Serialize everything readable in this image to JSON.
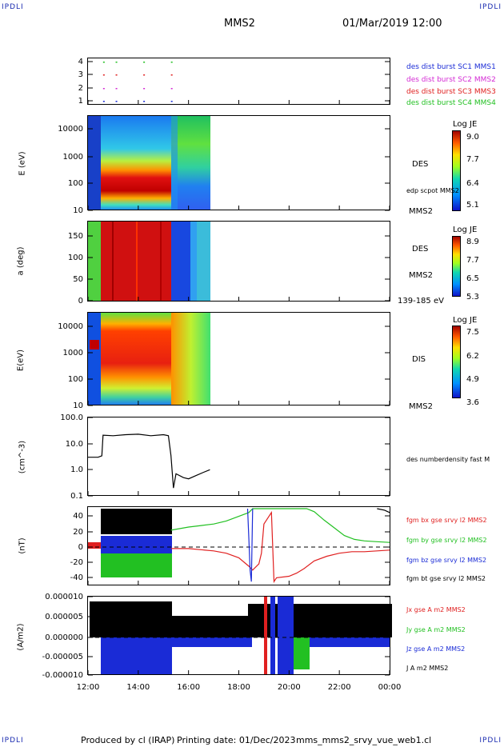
{
  "header": {
    "corner_tl": "IPDLI",
    "corner_tr": "IPDLI",
    "corner_bl": "IPDLI",
    "corner_br": "IPDLI",
    "spacecraft": "MMS2",
    "datetime": "01/Mar/2019 12:00"
  },
  "footer": {
    "producer": "Produced by cl (IRAP)",
    "print_date": "Printing date: 01/Dec/2023",
    "script": "mms_mms2_srvy_vue_web1.cl"
  },
  "chart_data": [
    {
      "type": "scatter",
      "panel": "burst",
      "yticks": [
        "4",
        "3",
        "2",
        "1"
      ],
      "legend": [
        {
          "name": "des dist burst SC1 MMS1",
          "color": "#1a2bd6"
        },
        {
          "name": "des dist burst SC2 MMS2",
          "color": "#d42ad4"
        },
        {
          "name": "des dist burst SC3 MMS3",
          "color": "#e02020"
        },
        {
          "name": "des dist burst SC4 MMS4",
          "color": "#22c022"
        }
      ],
      "x": [
        12.6,
        13.1,
        14.2,
        15.3
      ],
      "rows": [
        1,
        2,
        3,
        4
      ]
    },
    {
      "type": "heatmap",
      "panel": "des-energy",
      "ylabel": "E (eV)",
      "yticks": [
        "10000",
        "1000",
        "100",
        "10"
      ],
      "colorbar": {
        "title": "Log JE",
        "ticks": [
          "9.0",
          "7.7",
          "6.4",
          "5.1"
        ]
      },
      "labels": [
        "DES",
        "edp scpot MMS2",
        "MMS2"
      ],
      "data_end": 16.85
    },
    {
      "type": "heatmap",
      "panel": "des-pitch",
      "ylabel": "a (deg)",
      "yticks": [
        "150",
        "100",
        "50",
        "0"
      ],
      "colorbar": {
        "title": "Log JE",
        "ticks": [
          "8.9",
          "7.7",
          "6.5",
          "5.3"
        ]
      },
      "labels": [
        "DES",
        "MMS2",
        "139-185 eV"
      ],
      "data_end": 16.85
    },
    {
      "type": "heatmap",
      "panel": "dis-energy",
      "ylabel": "E(eV)",
      "yticks": [
        "10000",
        "1000",
        "100",
        "10"
      ],
      "colorbar": {
        "title": "Log JE",
        "ticks": [
          "7.5",
          "6.2",
          "4.9",
          "3.6"
        ]
      },
      "labels": [
        "DIS",
        "MMS2"
      ],
      "data_end": 16.85
    },
    {
      "type": "line",
      "panel": "density",
      "ylabel": "(cm^-3)",
      "yticks": [
        "100.0",
        "10.0",
        "1.0",
        "0.1"
      ],
      "ylim": [
        0.1,
        100
      ],
      "series": [
        {
          "name": "des numberdensity fast M",
          "color": "#000000",
          "x": [
            12.0,
            12.4,
            12.55,
            12.6,
            13.0,
            13.5,
            14.0,
            14.5,
            15.0,
            15.2,
            15.3,
            15.4,
            15.5,
            15.8,
            16.0,
            16.3,
            16.6,
            16.85
          ],
          "y": [
            3.0,
            3.0,
            3.4,
            21,
            20,
            22,
            23,
            20,
            22,
            20,
            3.5,
            0.2,
            0.7,
            0.5,
            0.45,
            0.6,
            0.8,
            1.0
          ]
        }
      ]
    },
    {
      "type": "line",
      "panel": "fgm",
      "ylabel": "(nT)",
      "yticks": [
        "40",
        "20",
        "0",
        "-20",
        "-40"
      ],
      "ylim": [
        -50,
        50
      ],
      "series": [
        {
          "name": "fgm bx gse srvy l2 MMS2",
          "color": "#e02020",
          "x": [
            15.3,
            16.0,
            17.0,
            17.5,
            18.0,
            18.4,
            18.55,
            18.8,
            18.9,
            19.0,
            19.3,
            19.4,
            19.5,
            20.0,
            20.3,
            20.6,
            21.0,
            21.5,
            22.0,
            22.5,
            23.0,
            23.5,
            24.0
          ],
          "y": [
            -2,
            -2,
            -5,
            -8,
            -14,
            -25,
            -30,
            -22,
            -8,
            30,
            45,
            -45,
            -40,
            -38,
            -34,
            -28,
            -18,
            -12,
            -8,
            -6,
            -6,
            -5,
            -4
          ]
        },
        {
          "name": "fgm by gse srvy l2 MMS2",
          "color": "#22c022",
          "x": [
            15.3,
            16.0,
            16.5,
            17.0,
            17.5,
            18.0,
            18.4,
            18.55,
            18.7,
            20.7,
            21.0,
            21.4,
            21.8,
            22.2,
            22.6,
            23.0,
            23.5,
            24.0
          ],
          "y": [
            22,
            26,
            28,
            30,
            34,
            40,
            45,
            50,
            50,
            50,
            46,
            35,
            25,
            15,
            10,
            8,
            7,
            6
          ]
        },
        {
          "name": "fgm bz gse srvy l2 MMS2",
          "color": "#1a2bd6",
          "x": [
            18.35,
            18.4,
            18.45,
            18.5,
            18.55
          ],
          "y": [
            50,
            10,
            -30,
            -45,
            50
          ]
        },
        {
          "name": "fgm bt gse srvy l2 MMS2",
          "color": "#000000",
          "x": [
            23.5,
            23.8,
            24.0
          ],
          "y": [
            50,
            48,
            45
          ]
        }
      ]
    },
    {
      "type": "area",
      "panel": "current",
      "ylabel": "(A/m2)",
      "yticks": [
        "0.000010",
        "0.000005",
        "0.000000",
        "-0.000005",
        "-0.000010"
      ],
      "ylim": [
        -1e-05,
        1e-05
      ],
      "xticks": [
        "12:00",
        "14:00",
        "16:00",
        "18:00",
        "20:00",
        "22:00",
        "00:00"
      ],
      "series": [
        {
          "name": "Jx gse A m2 MMS2",
          "color": "#e02020"
        },
        {
          "name": "Jy gse A m2 MMS2",
          "color": "#22c022"
        },
        {
          "name": "Jz gse A m2 MMS2",
          "color": "#1a2bd6"
        },
        {
          "name": "J A m2 MMS2",
          "color": "#000000"
        }
      ]
    }
  ]
}
